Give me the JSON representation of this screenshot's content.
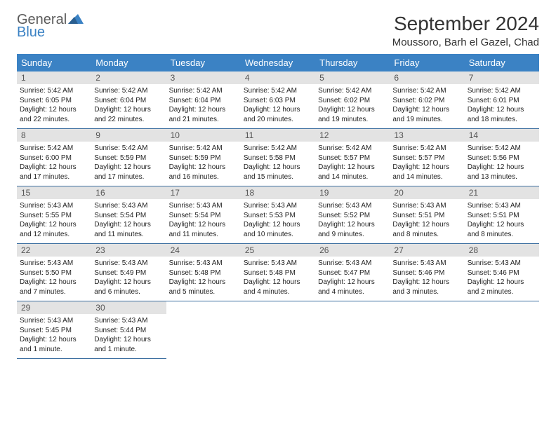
{
  "logo": {
    "top": "General",
    "bottom": "Blue"
  },
  "title": "September 2024",
  "location": "Moussoro, Barh el Gazel, Chad",
  "colors": {
    "header_bg": "#3b82c4",
    "header_text": "#ffffff",
    "daynum_bg": "#e3e3e3",
    "daynum_text": "#555555",
    "rule": "#3b6ea0",
    "logo_gray": "#5a5a5a",
    "logo_blue": "#3b82c4"
  },
  "weekdays": [
    "Sunday",
    "Monday",
    "Tuesday",
    "Wednesday",
    "Thursday",
    "Friday",
    "Saturday"
  ],
  "weeks": [
    [
      {
        "n": "1",
        "sr": "Sunrise: 5:42 AM",
        "ss": "Sunset: 6:05 PM",
        "d1": "Daylight: 12 hours",
        "d2": "and 22 minutes."
      },
      {
        "n": "2",
        "sr": "Sunrise: 5:42 AM",
        "ss": "Sunset: 6:04 PM",
        "d1": "Daylight: 12 hours",
        "d2": "and 22 minutes."
      },
      {
        "n": "3",
        "sr": "Sunrise: 5:42 AM",
        "ss": "Sunset: 6:04 PM",
        "d1": "Daylight: 12 hours",
        "d2": "and 21 minutes."
      },
      {
        "n": "4",
        "sr": "Sunrise: 5:42 AM",
        "ss": "Sunset: 6:03 PM",
        "d1": "Daylight: 12 hours",
        "d2": "and 20 minutes."
      },
      {
        "n": "5",
        "sr": "Sunrise: 5:42 AM",
        "ss": "Sunset: 6:02 PM",
        "d1": "Daylight: 12 hours",
        "d2": "and 19 minutes."
      },
      {
        "n": "6",
        "sr": "Sunrise: 5:42 AM",
        "ss": "Sunset: 6:02 PM",
        "d1": "Daylight: 12 hours",
        "d2": "and 19 minutes."
      },
      {
        "n": "7",
        "sr": "Sunrise: 5:42 AM",
        "ss": "Sunset: 6:01 PM",
        "d1": "Daylight: 12 hours",
        "d2": "and 18 minutes."
      }
    ],
    [
      {
        "n": "8",
        "sr": "Sunrise: 5:42 AM",
        "ss": "Sunset: 6:00 PM",
        "d1": "Daylight: 12 hours",
        "d2": "and 17 minutes."
      },
      {
        "n": "9",
        "sr": "Sunrise: 5:42 AM",
        "ss": "Sunset: 5:59 PM",
        "d1": "Daylight: 12 hours",
        "d2": "and 17 minutes."
      },
      {
        "n": "10",
        "sr": "Sunrise: 5:42 AM",
        "ss": "Sunset: 5:59 PM",
        "d1": "Daylight: 12 hours",
        "d2": "and 16 minutes."
      },
      {
        "n": "11",
        "sr": "Sunrise: 5:42 AM",
        "ss": "Sunset: 5:58 PM",
        "d1": "Daylight: 12 hours",
        "d2": "and 15 minutes."
      },
      {
        "n": "12",
        "sr": "Sunrise: 5:42 AM",
        "ss": "Sunset: 5:57 PM",
        "d1": "Daylight: 12 hours",
        "d2": "and 14 minutes."
      },
      {
        "n": "13",
        "sr": "Sunrise: 5:42 AM",
        "ss": "Sunset: 5:57 PM",
        "d1": "Daylight: 12 hours",
        "d2": "and 14 minutes."
      },
      {
        "n": "14",
        "sr": "Sunrise: 5:42 AM",
        "ss": "Sunset: 5:56 PM",
        "d1": "Daylight: 12 hours",
        "d2": "and 13 minutes."
      }
    ],
    [
      {
        "n": "15",
        "sr": "Sunrise: 5:43 AM",
        "ss": "Sunset: 5:55 PM",
        "d1": "Daylight: 12 hours",
        "d2": "and 12 minutes."
      },
      {
        "n": "16",
        "sr": "Sunrise: 5:43 AM",
        "ss": "Sunset: 5:54 PM",
        "d1": "Daylight: 12 hours",
        "d2": "and 11 minutes."
      },
      {
        "n": "17",
        "sr": "Sunrise: 5:43 AM",
        "ss": "Sunset: 5:54 PM",
        "d1": "Daylight: 12 hours",
        "d2": "and 11 minutes."
      },
      {
        "n": "18",
        "sr": "Sunrise: 5:43 AM",
        "ss": "Sunset: 5:53 PM",
        "d1": "Daylight: 12 hours",
        "d2": "and 10 minutes."
      },
      {
        "n": "19",
        "sr": "Sunrise: 5:43 AM",
        "ss": "Sunset: 5:52 PM",
        "d1": "Daylight: 12 hours",
        "d2": "and 9 minutes."
      },
      {
        "n": "20",
        "sr": "Sunrise: 5:43 AM",
        "ss": "Sunset: 5:51 PM",
        "d1": "Daylight: 12 hours",
        "d2": "and 8 minutes."
      },
      {
        "n": "21",
        "sr": "Sunrise: 5:43 AM",
        "ss": "Sunset: 5:51 PM",
        "d1": "Daylight: 12 hours",
        "d2": "and 8 minutes."
      }
    ],
    [
      {
        "n": "22",
        "sr": "Sunrise: 5:43 AM",
        "ss": "Sunset: 5:50 PM",
        "d1": "Daylight: 12 hours",
        "d2": "and 7 minutes."
      },
      {
        "n": "23",
        "sr": "Sunrise: 5:43 AM",
        "ss": "Sunset: 5:49 PM",
        "d1": "Daylight: 12 hours",
        "d2": "and 6 minutes."
      },
      {
        "n": "24",
        "sr": "Sunrise: 5:43 AM",
        "ss": "Sunset: 5:48 PM",
        "d1": "Daylight: 12 hours",
        "d2": "and 5 minutes."
      },
      {
        "n": "25",
        "sr": "Sunrise: 5:43 AM",
        "ss": "Sunset: 5:48 PM",
        "d1": "Daylight: 12 hours",
        "d2": "and 4 minutes."
      },
      {
        "n": "26",
        "sr": "Sunrise: 5:43 AM",
        "ss": "Sunset: 5:47 PM",
        "d1": "Daylight: 12 hours",
        "d2": "and 4 minutes."
      },
      {
        "n": "27",
        "sr": "Sunrise: 5:43 AM",
        "ss": "Sunset: 5:46 PM",
        "d1": "Daylight: 12 hours",
        "d2": "and 3 minutes."
      },
      {
        "n": "28",
        "sr": "Sunrise: 5:43 AM",
        "ss": "Sunset: 5:46 PM",
        "d1": "Daylight: 12 hours",
        "d2": "and 2 minutes."
      }
    ],
    [
      {
        "n": "29",
        "sr": "Sunrise: 5:43 AM",
        "ss": "Sunset: 5:45 PM",
        "d1": "Daylight: 12 hours",
        "d2": "and 1 minute."
      },
      {
        "n": "30",
        "sr": "Sunrise: 5:43 AM",
        "ss": "Sunset: 5:44 PM",
        "d1": "Daylight: 12 hours",
        "d2": "and 1 minute."
      },
      null,
      null,
      null,
      null,
      null
    ]
  ]
}
